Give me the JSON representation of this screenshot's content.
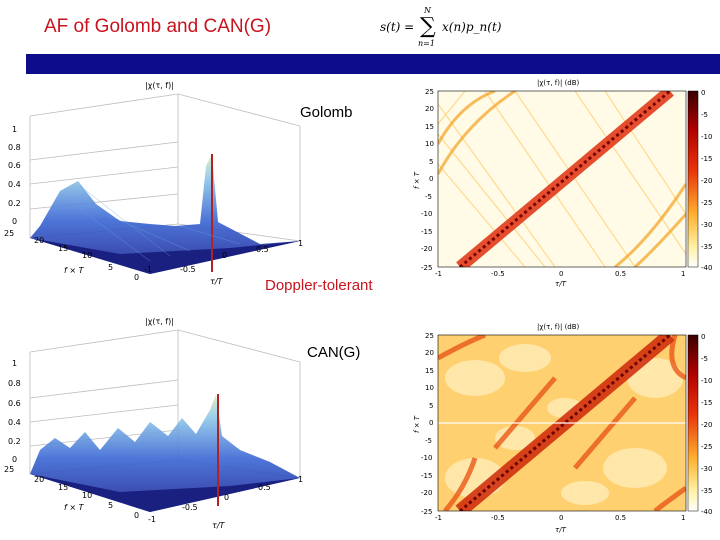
{
  "slide": {
    "title": "AF of Golomb and CAN(G)",
    "formula": {
      "lhs": "s(t) =",
      "sum_upper": "N",
      "sum_lower": "n=1",
      "rhs": "x(n)p_n(t)"
    },
    "labels": {
      "golomb": "Golomb",
      "doppler": "Doppler-tolerant",
      "can": "CAN(G)"
    }
  },
  "surface_plots": [
    {
      "name": "golomb-surface",
      "title": "|χ(τ, f)|",
      "z_ticks": [
        "1",
        "0.8",
        "0.6",
        "0.4",
        "0.2",
        "0"
      ],
      "f_ticks": [
        "25",
        "20",
        "15",
        "10",
        "5",
        "0"
      ],
      "tau_ticks": [
        "-1",
        "-0.5",
        "0",
        "0.5",
        "1"
      ],
      "f_label": "f × T",
      "tau_label": "τ/T"
    },
    {
      "name": "can-surface",
      "title": "|χ(τ, f)|",
      "z_ticks": [
        "1",
        "0.8",
        "0.6",
        "0.4",
        "0.2",
        "0"
      ],
      "f_ticks": [
        "25",
        "20",
        "15",
        "10",
        "5",
        "0"
      ],
      "tau_ticks": [
        "-1",
        "-0.5",
        "0",
        "0.5",
        "1"
      ],
      "f_label": "f × T",
      "tau_label": "τ/T"
    }
  ],
  "heatmaps": [
    {
      "name": "golomb-heatmap",
      "title": "|χ(τ, f)| (dB)",
      "y_ticks": [
        "25",
        "20",
        "15",
        "10",
        "5",
        "0",
        "-5",
        "-10",
        "-15",
        "-20",
        "-25"
      ],
      "x_ticks": [
        "-1",
        "-0.5",
        "0",
        "0.5",
        "1"
      ],
      "colorbar_ticks": [
        "0",
        "-5",
        "-10",
        "-15",
        "-20",
        "-25",
        "-30",
        "-35",
        "-40"
      ],
      "xlabel": "τ/T",
      "ylabel": "f × T"
    },
    {
      "name": "can-heatmap",
      "title": "|χ(τ, f)| (dB)",
      "y_ticks": [
        "25",
        "20",
        "15",
        "10",
        "5",
        "0",
        "-5",
        "-10",
        "-15",
        "-20",
        "-25"
      ],
      "x_ticks": [
        "-1",
        "-0.5",
        "0",
        "0.5",
        "1"
      ],
      "colorbar_ticks": [
        "0",
        "-5",
        "-10",
        "-15",
        "-20",
        "-25",
        "-30",
        "-35",
        "-40"
      ],
      "xlabel": "τ/T",
      "ylabel": "f × T"
    }
  ],
  "colors": {
    "title": "#c8141e",
    "banner": "#0d0c8c"
  }
}
